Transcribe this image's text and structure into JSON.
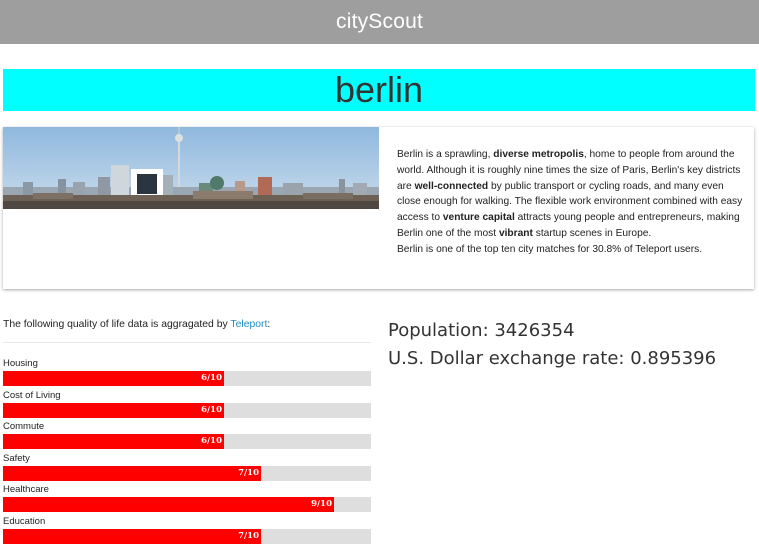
{
  "header": {
    "brand": "cityScout"
  },
  "city": {
    "name": "berlin"
  },
  "summary": {
    "p1_a": "Berlin is a sprawling, ",
    "p1_b": "diverse metropolis",
    "p1_c": ", home to people from around the world. Although it is roughly nine times the size of Paris, Berlin's key districts are ",
    "p1_d": "well-connected",
    "p1_e": " by public transport or cycling roads, and many even close enough for walking. The flexible work environment combined with easy access to ",
    "p1_f": "venture capital",
    "p1_g": " attracts young people and entrepreneurs, making Berlin one of the most ",
    "p1_h": "vibrant",
    "p1_i": " startup scenes in Europe.",
    "p2": "Berlin is one of the top ten city matches for 30.8% of Teleport users."
  },
  "qol": {
    "intro": "The following quality of life data is aggragated by ",
    "source": "Teleport",
    "colon": ":",
    "bar_color": "#ff0000",
    "track_color": "#dedede",
    "items": [
      {
        "label": "Housing",
        "score": "6/10",
        "value": 6
      },
      {
        "label": "Cost of Living",
        "score": "6/10",
        "value": 6
      },
      {
        "label": "Commute",
        "score": "6/10",
        "value": 6
      },
      {
        "label": "Safety",
        "score": "7/10",
        "value": 7
      },
      {
        "label": "Healthcare",
        "score": "9/10",
        "value": 9
      },
      {
        "label": "Education",
        "score": "7/10",
        "value": 7
      }
    ]
  },
  "stats": {
    "population": "Population: 3426354",
    "exchange": "U.S. Dollar exchange rate: 0.895396"
  },
  "colors": {
    "topbar": "#9e9e9e",
    "banner": "#00ffff"
  }
}
